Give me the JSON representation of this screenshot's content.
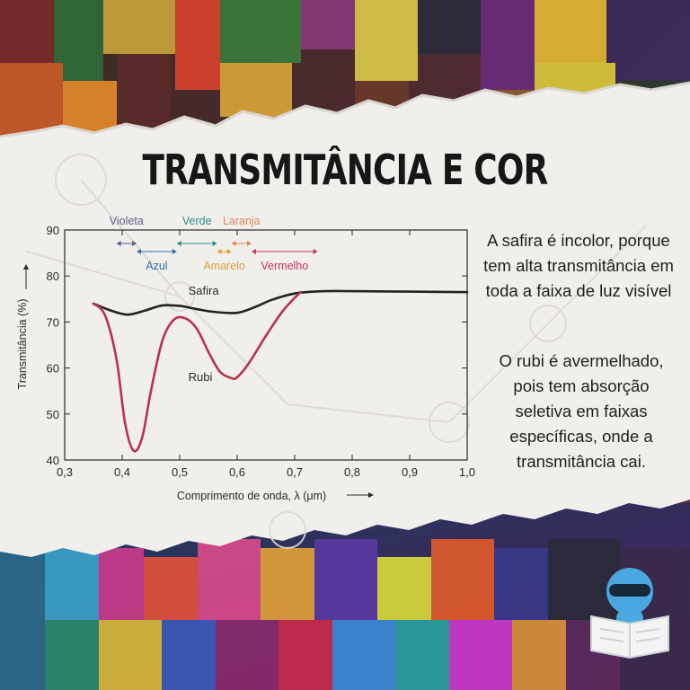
{
  "title": "TRANSMITÂNCIA E COR",
  "text": {
    "paragraph_1": "A  safira é incolor, porque\ntem alta transmitância em\ntoda a faixa de luz visível",
    "paragraph_2": "O rubi é avermelhado,\npois tem absorção\nseletiva em faixas\nespecíficas, onde a\ntransmitância cai."
  },
  "colors": {
    "paper": "#f1efeb",
    "safira_line": "#222222",
    "rubi_line": "#b8324f",
    "band_arrow": "#9aa0a6"
  },
  "icons": [
    "mascot-icon"
  ],
  "chart_data": {
    "type": "line",
    "xlabel": "Comprimento de onda, λ (μm)",
    "ylabel": "Transmitância (%)",
    "xlim": [
      0.3,
      1.0
    ],
    "ylim": [
      40,
      90
    ],
    "x_ticks": [
      "0,3",
      "0,4",
      "0,5",
      "0,6",
      "0,7",
      "0,8",
      "0,9",
      "1,0"
    ],
    "y_ticks": [
      "40",
      "50",
      "60",
      "70",
      "80",
      "90"
    ],
    "grid": false,
    "series": [
      {
        "name": "Safira",
        "x": [
          0.35,
          0.38,
          0.41,
          0.44,
          0.47,
          0.5,
          0.53,
          0.56,
          0.6,
          0.63,
          0.66,
          0.7,
          0.75,
          0.8,
          0.9,
          1.0
        ],
        "y": [
          74,
          72.5,
          71.6,
          72.5,
          73.6,
          73.5,
          72.8,
          72.2,
          72,
          73.2,
          74.8,
          76.2,
          76.7,
          76.7,
          76.6,
          76.5
        ]
      },
      {
        "name": "Rubi",
        "x": [
          0.35,
          0.37,
          0.39,
          0.405,
          0.42,
          0.435,
          0.45,
          0.47,
          0.49,
          0.51,
          0.53,
          0.55,
          0.57,
          0.59,
          0.6,
          0.62,
          0.65,
          0.68,
          0.71
        ],
        "y": [
          74,
          71.5,
          62,
          48,
          42,
          45,
          55,
          66,
          70.5,
          70.8,
          68.5,
          63.5,
          59.2,
          57.8,
          58,
          61,
          67,
          72.5,
          76.5
        ]
      }
    ],
    "color_bands": [
      {
        "name": "Violeta",
        "start": 0.39,
        "end": 0.425
      },
      {
        "name": "Azul",
        "start": 0.425,
        "end": 0.495
      },
      {
        "name": "Verde",
        "start": 0.495,
        "end": 0.565
      },
      {
        "name": "Amarelo",
        "start": 0.565,
        "end": 0.59
      },
      {
        "name": "Laranja",
        "start": 0.59,
        "end": 0.625
      },
      {
        "name": "Vermelho",
        "start": 0.625,
        "end": 0.74
      }
    ],
    "band_colors": {
      "Violeta": "#5a5f8a",
      "Azul": "#2f6fa8",
      "Verde": "#2f8c8a",
      "Amarelo": "#d8a13a",
      "Laranja": "#e08a5a",
      "Vermelho": "#c2385a"
    }
  }
}
